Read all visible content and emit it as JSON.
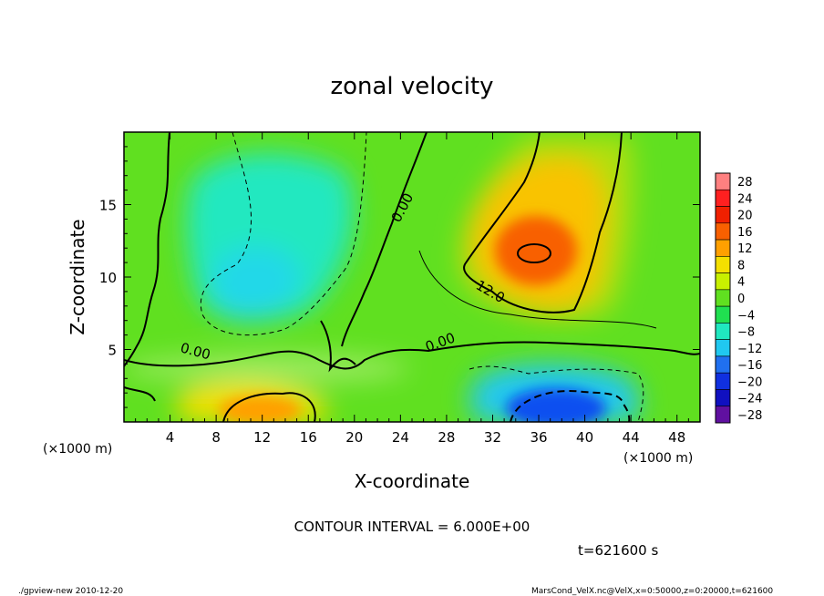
{
  "chart_data": {
    "type": "heatmap",
    "title": "zonal velocity",
    "xlabel": "X-coordinate",
    "ylabel": "Z-coordinate",
    "x_unit_label": "(×1000 m)",
    "y_unit_label": "(×1000 m)",
    "xlim": [
      0,
      50
    ],
    "ylim": [
      0,
      20
    ],
    "x_ticks": [
      "4",
      "8",
      "12",
      "16",
      "20",
      "24",
      "28",
      "32",
      "36",
      "40",
      "44",
      "48"
    ],
    "y_ticks": [
      "5",
      "10",
      "15"
    ],
    "colorbar": {
      "levels": [
        "28",
        "24",
        "20",
        "16",
        "12",
        "8",
        "4",
        "0",
        "−4",
        "−8",
        "−12",
        "−16",
        "−20",
        "−24",
        "−28"
      ],
      "colors": [
        "#ff8080",
        "#ff2020",
        "#f02000",
        "#f86000",
        "#ffa000",
        "#f4e000",
        "#c8f000",
        "#60e020",
        "#20e050",
        "#20e8c0",
        "#20c8f0",
        "#2070f0",
        "#1030e0",
        "#1010c0",
        "#6010a0"
      ]
    },
    "contour_labels": [
      "0.00",
      "12.0",
      "0.00",
      "0.00"
    ],
    "features": [
      {
        "name": "positive maximum",
        "x": 35,
        "z": 12,
        "value": 18
      },
      {
        "name": "negative minimum",
        "x": 38,
        "z": 1.2,
        "value": -20
      },
      {
        "name": "lower-left warm core",
        "x": 12,
        "z": 1.2,
        "value": 12
      },
      {
        "name": "upper-left cool region",
        "x": 12,
        "z": 10,
        "value": -9
      }
    ]
  },
  "annotations": {
    "contour_interval": "CONTOUR INTERVAL = 6.000E+00",
    "time": "t=621600 s",
    "footer_left": "./gpview-new  2010-12-20",
    "footer_right": "MarsCond_VelX.nc@VelX,x=0:50000,z=0:20000,t=621600"
  }
}
